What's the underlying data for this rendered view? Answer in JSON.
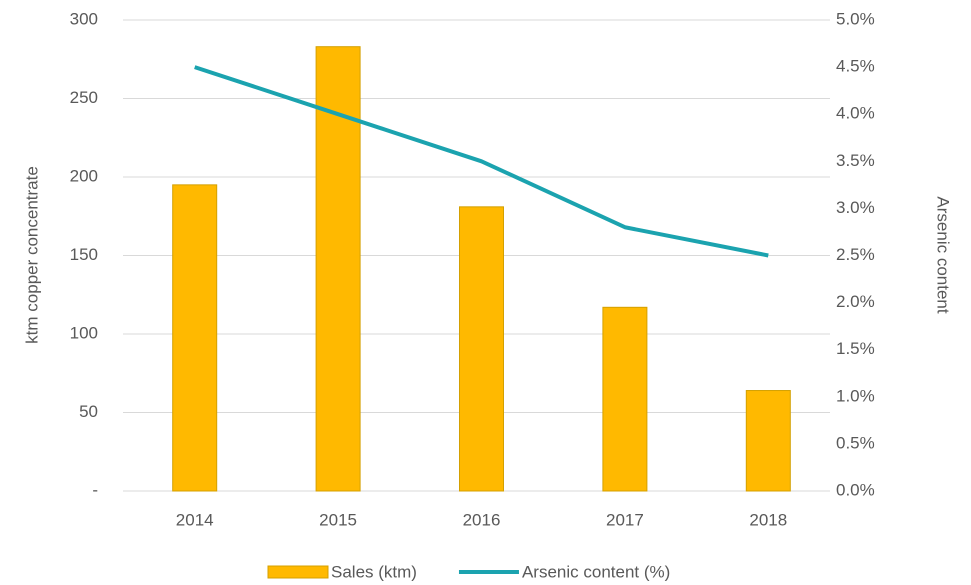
{
  "chart_data": {
    "type": "bar",
    "categories": [
      "2014",
      "2015",
      "2016",
      "2017",
      "2018"
    ],
    "series": [
      {
        "name": "Sales (ktm)",
        "type": "bar",
        "color": "#FFB900",
        "values": [
          195,
          283,
          181,
          117,
          64
        ]
      },
      {
        "name": "Arsenic content (%)",
        "type": "line",
        "axis": "y2",
        "color": "#1BA3AF",
        "values": [
          4.5,
          4.0,
          3.5,
          2.8,
          2.5
        ]
      }
    ],
    "ylabel": "ktm copper concentrate",
    "y2label": "Arsenic content",
    "ylim": [
      0,
      300
    ],
    "yticks": [
      {
        "value": 0,
        "label": "-"
      },
      50,
      100,
      150,
      200,
      250,
      300
    ],
    "y2lim": [
      0,
      5
    ],
    "y2ticks": [
      {
        "value": 0,
        "label": "0.0%"
      },
      {
        "value": 0.5,
        "label": "0.5%"
      },
      {
        "value": 1,
        "label": "1.0%"
      },
      {
        "value": 1.5,
        "label": "1.5%"
      },
      {
        "value": 2,
        "label": "2.0%"
      },
      {
        "value": 2.5,
        "label": "2.5%"
      },
      {
        "value": 3,
        "label": "3.0%"
      },
      {
        "value": 3.5,
        "label": "3.5%"
      },
      {
        "value": 4,
        "label": "4.0%"
      },
      {
        "value": 4.5,
        "label": "4.5%"
      },
      {
        "value": 5,
        "label": "5.0%"
      }
    ],
    "grid": true,
    "legend": "bottom"
  }
}
